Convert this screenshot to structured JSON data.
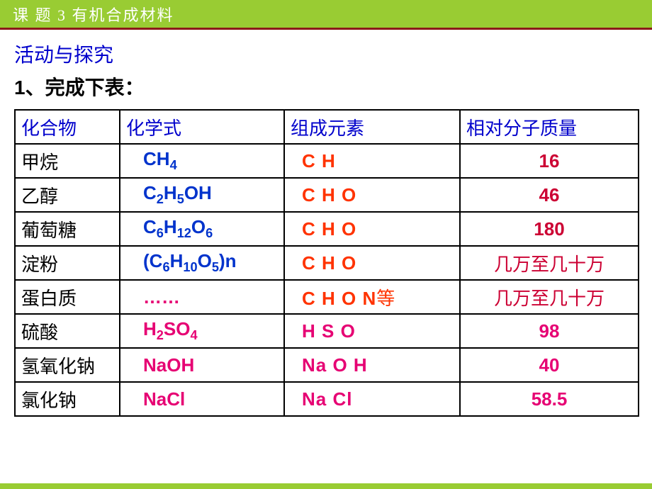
{
  "header": {
    "title": "课 题 3 有机合成材料"
  },
  "section": {
    "title": "活动与探究",
    "instruction": "1、完成下表："
  },
  "table": {
    "headers": {
      "compound": "化合物",
      "formula": "化学式",
      "elements": "组成元素",
      "mass": "相对分子质量"
    },
    "rows": [
      {
        "compound": "甲烷",
        "formula_html": "CH<sub>4</sub>",
        "formula_color": "color-blue",
        "elements": "C H",
        "elements_color": "color-orange",
        "mass": "16",
        "mass_color": "color-red"
      },
      {
        "compound": "乙醇",
        "formula_html": "C<sub>2</sub>H<sub>5</sub>OH",
        "formula_color": "color-blue",
        "elements": "C H O",
        "elements_color": "color-orange",
        "mass": "46",
        "mass_color": "color-red"
      },
      {
        "compound": "葡萄糖",
        "formula_html": "C<sub>6</sub>H<sub>12</sub>O<sub>6</sub>",
        "formula_color": "color-blue",
        "elements": "C H O",
        "elements_color": "color-orange",
        "mass": "180",
        "mass_color": "color-red"
      },
      {
        "compound": "淀粉",
        "formula_html": "(C<sub>6</sub>H<sub>10</sub>O<sub>5</sub>)n",
        "formula_color": "color-blue",
        "elements": "C H O",
        "elements_color": "color-orange",
        "mass": "几万至几十万",
        "mass_color": "color-red",
        "mass_cn": true
      },
      {
        "compound": "蛋白质",
        "formula_html": "……",
        "formula_color": "color-magenta",
        "elements": "C H O N等",
        "elements_color": "color-orange",
        "mass": "几万至几十万",
        "mass_color": "color-red",
        "mass_cn": true
      },
      {
        "compound": "硫酸",
        "formula_html": "H<sub>2</sub>SO<sub>4</sub>",
        "formula_color": "color-magenta",
        "elements": "H  S  O",
        "elements_color": "color-magenta",
        "mass": "98",
        "mass_color": "color-magenta"
      },
      {
        "compound": "氢氧化钠",
        "formula_html": "NaOH",
        "formula_color": "color-magenta",
        "elements": "Na  O  H",
        "elements_color": "color-magenta",
        "mass": "40",
        "mass_color": "color-magenta"
      },
      {
        "compound": "氯化钠",
        "formula_html": "NaCl",
        "formula_color": "color-magenta",
        "elements": "Na   Cl",
        "elements_color": "color-magenta",
        "mass": "58.5",
        "mass_color": "color-magenta"
      }
    ]
  },
  "colors": {
    "header_bg": "#99cc33",
    "header_border": "#8B1A1A",
    "blue": "#0033cc",
    "orange": "#ff3300",
    "red": "#cc0033",
    "magenta": "#e60073"
  }
}
